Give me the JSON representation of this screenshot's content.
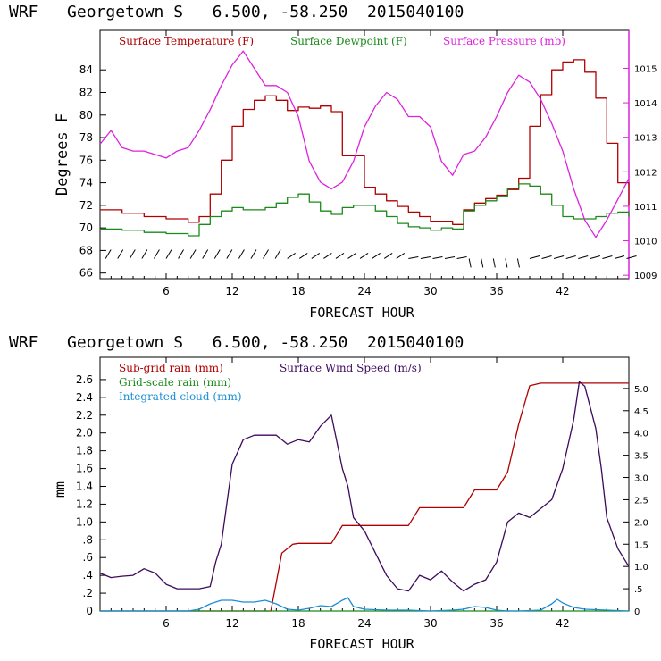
{
  "chart_data": [
    {
      "type": "line",
      "title": "WRF   Georgetown S   6.500, -58.250  2015040100",
      "xlabel": "FORECAST HOUR",
      "ylabel": "Degrees F",
      "xlim": [
        0,
        48
      ],
      "ylim": [
        65.5,
        87.5
      ],
      "y2lim": [
        1008.9,
        1016.1
      ],
      "xticks": [
        "6",
        "12",
        "18",
        "24",
        "30",
        "36",
        "42"
      ],
      "yticks": [
        "66",
        "68",
        "70",
        "72",
        "74",
        "76",
        "78",
        "80",
        "82",
        "84"
      ],
      "y2ticks": [
        "1009",
        "1010",
        "1011",
        "1012",
        "1013",
        "1014",
        "1015"
      ],
      "legend_position": "top",
      "wind_barbs": true,
      "series": [
        {
          "name": "Surface Temperature (F)",
          "color": "#b00000",
          "axis": "left",
          "x": [
            0,
            2,
            4,
            6,
            8,
            9,
            10,
            11,
            12,
            13,
            14,
            15,
            16,
            17,
            18,
            19,
            20,
            21,
            22,
            23,
            24,
            25,
            26,
            27,
            28,
            29,
            30,
            31,
            32,
            33,
            34,
            35,
            36,
            37,
            38,
            39,
            40,
            41,
            42,
            43,
            44,
            45,
            46,
            47,
            48
          ],
          "y": [
            71.6,
            71.3,
            71.0,
            70.8,
            70.5,
            71.0,
            73.0,
            76.0,
            79.0,
            80.5,
            81.3,
            81.7,
            81.3,
            80.4,
            80.7,
            80.6,
            80.8,
            80.3,
            76.4,
            76.4,
            73.6,
            73.0,
            72.4,
            71.9,
            71.4,
            71.0,
            70.6,
            70.6,
            70.3,
            71.6,
            72.2,
            72.6,
            72.9,
            73.4,
            74.4,
            79.0,
            81.8,
            84.0,
            84.7,
            84.9,
            83.8,
            81.5,
            77.5,
            74.0,
            72.0
          ]
        },
        {
          "name": "Surface Dewpoint (F)",
          "color": "#1a8a1a",
          "axis": "left",
          "x": [
            0,
            2,
            4,
            6,
            8,
            9,
            10,
            11,
            12,
            13,
            14,
            15,
            16,
            17,
            18,
            19,
            20,
            21,
            22,
            23,
            24,
            25,
            26,
            27,
            28,
            29,
            30,
            31,
            32,
            33,
            34,
            35,
            36,
            37,
            38,
            39,
            40,
            41,
            42,
            43,
            44,
            45,
            46,
            47,
            48
          ],
          "y": [
            69.9,
            69.8,
            69.6,
            69.5,
            69.3,
            70.3,
            71.0,
            71.5,
            71.8,
            71.6,
            71.6,
            71.8,
            72.2,
            72.7,
            73.0,
            72.3,
            71.5,
            71.2,
            71.8,
            72.0,
            72.0,
            71.5,
            71.0,
            70.4,
            70.1,
            70.0,
            69.8,
            70.0,
            69.9,
            71.5,
            72.0,
            72.4,
            72.8,
            73.5,
            73.9,
            73.7,
            73.0,
            72.0,
            71.0,
            70.8,
            70.8,
            71.0,
            71.3,
            71.4,
            71.0
          ]
        },
        {
          "name": "Surface Pressure (mb)",
          "color": "#dd22dd",
          "axis": "right",
          "x": [
            0,
            1,
            2,
            3,
            4,
            5,
            6,
            7,
            8,
            9,
            10,
            11,
            12,
            13,
            14,
            15,
            16,
            17,
            18,
            19,
            20,
            21,
            22,
            23,
            24,
            25,
            26,
            27,
            28,
            29,
            30,
            31,
            32,
            33,
            34,
            35,
            36,
            37,
            38,
            39,
            40,
            41,
            42,
            43,
            44,
            45,
            46,
            47,
            48
          ],
          "y": [
            1012.8,
            1013.2,
            1012.7,
            1012.6,
            1012.6,
            1012.5,
            1012.4,
            1012.6,
            1012.7,
            1013.2,
            1013.8,
            1014.5,
            1015.1,
            1015.5,
            1015.0,
            1014.5,
            1014.5,
            1014.3,
            1013.6,
            1012.3,
            1011.7,
            1011.5,
            1011.7,
            1012.3,
            1013.3,
            1013.9,
            1014.3,
            1014.1,
            1013.6,
            1013.6,
            1013.3,
            1012.3,
            1011.9,
            1012.5,
            1012.6,
            1013.0,
            1013.6,
            1014.3,
            1014.8,
            1014.6,
            1014.1,
            1013.4,
            1012.6,
            1011.5,
            1010.6,
            1010.1,
            1010.6,
            1011.2,
            1011.8
          ]
        }
      ]
    },
    {
      "type": "line",
      "title": "WRF   Georgetown S   6.500, -58.250  2015040100",
      "xlabel": "FORECAST HOUR",
      "ylabel": "mm",
      "xlim": [
        0,
        48
      ],
      "ylim": [
        0,
        2.85
      ],
      "y2lim": [
        0,
        5.7
      ],
      "xticks": [
        "6",
        "12",
        "18",
        "24",
        "30",
        "36",
        "42"
      ],
      "yticks": [
        "0",
        ".2",
        ".4",
        ".6",
        ".8",
        "1.0",
        "1.2",
        "1.4",
        "1.6",
        "1.8",
        "2.0",
        "2.2",
        "2.4",
        "2.6"
      ],
      "y2ticks": [
        "0",
        ".5",
        "1.0",
        "1.5",
        "2.0",
        "2.5",
        "3.0",
        "3.5",
        "4.0",
        "4.5",
        "5.0"
      ],
      "legend_position": "top-left",
      "series": [
        {
          "name": "Sub-grid rain (mm)",
          "color": "#b00000",
          "axis": "left",
          "x": [
            0,
            15.5,
            16.5,
            17.5,
            18,
            21,
            22,
            23,
            24,
            28,
            29,
            33,
            34,
            35,
            36,
            37,
            38,
            39,
            40,
            48
          ],
          "y": [
            0,
            0,
            0.65,
            0.75,
            0.76,
            0.76,
            0.96,
            0.96,
            0.96,
            0.96,
            1.16,
            1.16,
            1.36,
            1.36,
            1.36,
            1.56,
            2.1,
            2.53,
            2.56,
            2.56
          ]
        },
        {
          "name": "Grid-scale rain (mm)",
          "color": "#1a8a1a",
          "axis": "left",
          "x": [
            0,
            48
          ],
          "y": [
            0,
            0
          ]
        },
        {
          "name": "Integrated cloud (mm)",
          "color": "#1d8ed6",
          "axis": "left",
          "x": [
            0,
            8,
            9,
            10,
            11,
            12,
            13,
            14,
            15,
            16,
            17,
            18,
            19,
            20,
            21,
            22,
            22.5,
            23,
            24,
            26,
            28,
            30,
            32,
            33,
            34,
            35,
            36,
            37,
            38,
            40,
            41,
            41.5,
            42,
            43,
            44,
            48
          ],
          "y": [
            0,
            0,
            0.02,
            0.08,
            0.12,
            0.12,
            0.1,
            0.1,
            0.12,
            0.08,
            0.02,
            0.01,
            0.03,
            0.06,
            0.05,
            0.12,
            0.15,
            0.05,
            0.02,
            0.01,
            0.01,
            0,
            0.01,
            0.02,
            0.05,
            0.04,
            0.01,
            0,
            0,
            0.01,
            0.08,
            0.13,
            0.09,
            0.04,
            0.02,
            0
          ]
        },
        {
          "name": "Surface Wind Speed (m/s)",
          "color": "#3d0a5c",
          "axis": "right",
          "x": [
            0,
            1,
            2,
            3,
            4,
            5,
            6,
            7,
            8,
            9,
            10,
            10.5,
            11,
            12,
            13,
            14,
            15,
            16,
            17,
            18,
            19,
            20,
            21,
            22,
            22.5,
            23,
            24,
            25,
            26,
            27,
            28,
            29,
            30,
            31,
            32,
            33,
            34,
            35,
            36,
            37,
            38,
            39,
            40,
            41,
            42,
            43,
            43.5,
            44,
            45,
            45.5,
            46,
            47,
            48
          ],
          "y": [
            0.85,
            0.75,
            0.78,
            0.8,
            0.95,
            0.85,
            0.6,
            0.5,
            0.5,
            0.5,
            0.55,
            1.1,
            1.5,
            3.3,
            3.85,
            3.95,
            3.95,
            3.95,
            3.75,
            3.85,
            3.8,
            4.15,
            4.4,
            3.2,
            2.8,
            2.1,
            1.8,
            1.3,
            0.8,
            0.5,
            0.45,
            0.8,
            0.7,
            0.9,
            0.65,
            0.45,
            0.6,
            0.7,
            1.1,
            2.0,
            2.2,
            2.1,
            2.3,
            2.5,
            3.2,
            4.3,
            5.15,
            5.05,
            4.1,
            3.2,
            2.1,
            1.4,
            1.0
          ]
        }
      ]
    }
  ]
}
